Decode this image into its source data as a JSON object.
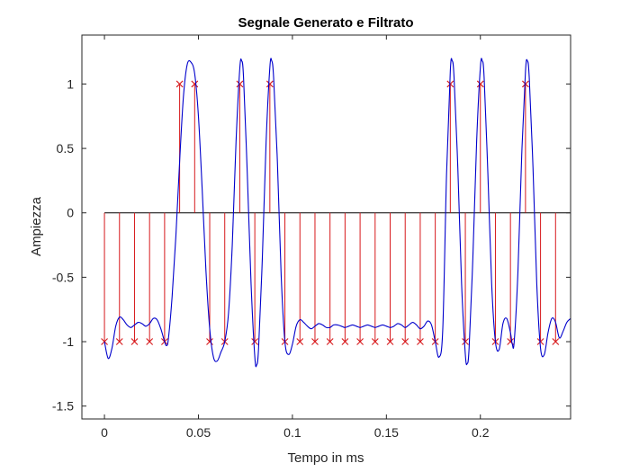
{
  "chart_data": {
    "type": "line",
    "title": "Segnale Generato e Filtrato",
    "xlabel": "Tempo in ms",
    "ylabel": "Ampiezza",
    "xlim": [
      -0.012,
      0.248
    ],
    "ylim": [
      -1.6,
      1.38
    ],
    "xticks": [
      0,
      0.05,
      0.1,
      0.15,
      0.2
    ],
    "xtick_labels": [
      "0",
      "0.05",
      "0.1",
      "0.15",
      "0.2"
    ],
    "yticks": [
      -1.5,
      -1,
      -0.5,
      0,
      0.5,
      1
    ],
    "ytick_labels": [
      "-1.5",
      "-1",
      "-0.5",
      "0",
      "0.5",
      "1"
    ],
    "grid": false,
    "series": [
      {
        "kind": "stem",
        "marker": "x",
        "color": "#d7191c",
        "x": [
          0,
          0.008,
          0.016,
          0.024,
          0.032,
          0.04,
          0.048,
          0.056,
          0.064,
          0.072,
          0.08,
          0.088,
          0.096,
          0.104,
          0.112,
          0.12,
          0.128,
          0.136,
          0.144,
          0.152,
          0.16,
          0.168,
          0.176,
          0.184,
          0.192,
          0.2,
          0.208,
          0.216,
          0.224,
          0.232,
          0.24
        ],
        "values": [
          -1,
          -1,
          -1,
          -1,
          -1,
          1,
          1,
          -1,
          -1,
          1,
          -1,
          1,
          -1,
          -1,
          -1,
          -1,
          -1,
          -1,
          -1,
          -1,
          -1,
          -1,
          -1,
          1,
          -1,
          1,
          -1,
          -1,
          1,
          -1,
          -1
        ]
      },
      {
        "kind": "line",
        "color": "#0000cc",
        "points": [
          [
            0,
            -1.0
          ],
          [
            0.002,
            -1.13
          ],
          [
            0.004,
            -1.05
          ],
          [
            0.006,
            -0.88
          ],
          [
            0.008,
            -0.81
          ],
          [
            0.01,
            -0.83
          ],
          [
            0.012,
            -0.87
          ],
          [
            0.014,
            -0.89
          ],
          [
            0.016,
            -0.87
          ],
          [
            0.018,
            -0.85
          ],
          [
            0.02,
            -0.86
          ],
          [
            0.022,
            -0.88
          ],
          [
            0.024,
            -0.86
          ],
          [
            0.026,
            -0.82
          ],
          [
            0.028,
            -0.83
          ],
          [
            0.03,
            -0.9
          ],
          [
            0.032,
            -1.0
          ],
          [
            0.033,
            -1.03
          ],
          [
            0.034,
            -0.98
          ],
          [
            0.036,
            -0.65
          ],
          [
            0.038,
            -0.18
          ],
          [
            0.04,
            0.4
          ],
          [
            0.042,
            0.9
          ],
          [
            0.044,
            1.15
          ],
          [
            0.046,
            1.17
          ],
          [
            0.048,
            1.08
          ],
          [
            0.05,
            0.75
          ],
          [
            0.052,
            0.18
          ],
          [
            0.054,
            -0.45
          ],
          [
            0.056,
            -0.9
          ],
          [
            0.058,
            -1.12
          ],
          [
            0.06,
            -1.15
          ],
          [
            0.062,
            -1.08
          ],
          [
            0.064,
            -1.0
          ],
          [
            0.066,
            -0.78
          ],
          [
            0.068,
            -0.25
          ],
          [
            0.07,
            0.55
          ],
          [
            0.072,
            1.12
          ],
          [
            0.073,
            1.18
          ],
          [
            0.074,
            1.05
          ],
          [
            0.076,
            0.3
          ],
          [
            0.078,
            -0.55
          ],
          [
            0.08,
            -1.12
          ],
          [
            0.081,
            -1.18
          ],
          [
            0.082,
            -1.05
          ],
          [
            0.084,
            -0.35
          ],
          [
            0.086,
            0.55
          ],
          [
            0.088,
            1.13
          ],
          [
            0.089,
            1.18
          ],
          [
            0.09,
            1.05
          ],
          [
            0.092,
            0.4
          ],
          [
            0.094,
            -0.48
          ],
          [
            0.096,
            -1.0
          ],
          [
            0.098,
            -1.1
          ],
          [
            0.1,
            -1.02
          ],
          [
            0.102,
            -0.88
          ],
          [
            0.104,
            -0.83
          ],
          [
            0.106,
            -0.85
          ],
          [
            0.108,
            -0.88
          ],
          [
            0.11,
            -0.9
          ],
          [
            0.112,
            -0.88
          ],
          [
            0.114,
            -0.86
          ],
          [
            0.116,
            -0.87
          ],
          [
            0.118,
            -0.89
          ],
          [
            0.12,
            -0.89
          ],
          [
            0.122,
            -0.87
          ],
          [
            0.124,
            -0.87
          ],
          [
            0.126,
            -0.88
          ],
          [
            0.128,
            -0.89
          ],
          [
            0.13,
            -0.88
          ],
          [
            0.132,
            -0.87
          ],
          [
            0.134,
            -0.88
          ],
          [
            0.136,
            -0.89
          ],
          [
            0.138,
            -0.88
          ],
          [
            0.14,
            -0.87
          ],
          [
            0.142,
            -0.88
          ],
          [
            0.144,
            -0.89
          ],
          [
            0.146,
            -0.88
          ],
          [
            0.148,
            -0.87
          ],
          [
            0.15,
            -0.88
          ],
          [
            0.152,
            -0.89
          ],
          [
            0.154,
            -0.88
          ],
          [
            0.156,
            -0.86
          ],
          [
            0.158,
            -0.87
          ],
          [
            0.16,
            -0.89
          ],
          [
            0.162,
            -0.87
          ],
          [
            0.164,
            -0.85
          ],
          [
            0.166,
            -0.87
          ],
          [
            0.168,
            -0.9
          ],
          [
            0.17,
            -0.88
          ],
          [
            0.172,
            -0.84
          ],
          [
            0.174,
            -0.87
          ],
          [
            0.176,
            -1.0
          ],
          [
            0.178,
            -1.12
          ],
          [
            0.18,
            -0.9
          ],
          [
            0.182,
            0.3
          ],
          [
            0.184,
            1.1
          ],
          [
            0.185,
            1.18
          ],
          [
            0.186,
            1.05
          ],
          [
            0.188,
            0.35
          ],
          [
            0.19,
            -0.55
          ],
          [
            0.192,
            -1.1
          ],
          [
            0.193,
            -1.17
          ],
          [
            0.194,
            -1.05
          ],
          [
            0.196,
            -0.35
          ],
          [
            0.198,
            0.55
          ],
          [
            0.2,
            1.13
          ],
          [
            0.201,
            1.18
          ],
          [
            0.202,
            1.05
          ],
          [
            0.204,
            0.3
          ],
          [
            0.206,
            -0.55
          ],
          [
            0.208,
            -1.0
          ],
          [
            0.21,
            -1.06
          ],
          [
            0.212,
            -0.86
          ],
          [
            0.214,
            -0.82
          ],
          [
            0.216,
            -0.93
          ],
          [
            0.217,
            -1.02
          ],
          [
            0.218,
            -1.0
          ],
          [
            0.22,
            -0.45
          ],
          [
            0.222,
            0.45
          ],
          [
            0.224,
            1.1
          ],
          [
            0.225,
            1.18
          ],
          [
            0.226,
            1.05
          ],
          [
            0.228,
            0.35
          ],
          [
            0.23,
            -0.55
          ],
          [
            0.232,
            -1.05
          ],
          [
            0.234,
            -1.1
          ],
          [
            0.236,
            -0.93
          ],
          [
            0.238,
            -0.82
          ],
          [
            0.24,
            -0.85
          ],
          [
            0.242,
            -0.97
          ],
          [
            0.244,
            -0.92
          ],
          [
            0.246,
            -0.85
          ],
          [
            0.248,
            -0.82
          ]
        ]
      }
    ]
  }
}
